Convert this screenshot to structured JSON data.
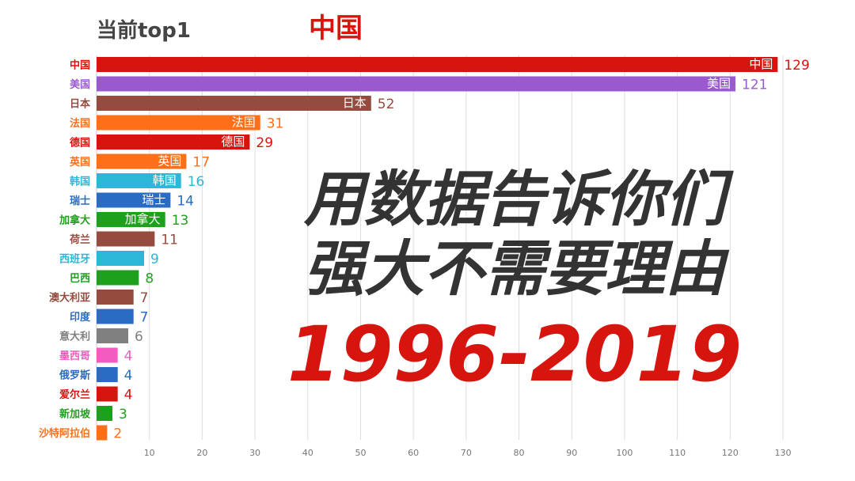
{
  "header": {
    "title": "当前top1",
    "leader": "中国"
  },
  "overlay": {
    "line1": "用数据告诉你们",
    "line2": "强大不需要理由",
    "line3": "1996-2019"
  },
  "chart_data": {
    "type": "bar",
    "orientation": "horizontal",
    "categories": [
      "中国",
      "美国",
      "日本",
      "法国",
      "德国",
      "英国",
      "韩国",
      "瑞士",
      "加拿大",
      "荷兰",
      "西班牙",
      "巴西",
      "澳大利亚",
      "印度",
      "意大利",
      "墨西哥",
      "俄罗斯",
      "爱尔兰",
      "新加坡",
      "沙特阿拉伯"
    ],
    "values": [
      129,
      121,
      52,
      31,
      29,
      17,
      16,
      14,
      13,
      11,
      9,
      8,
      7,
      7,
      6,
      4,
      4,
      4,
      3,
      2
    ],
    "colors": [
      "#d7150f",
      "#9b59d0",
      "#964b3f",
      "#ff6f1a",
      "#d7150f",
      "#ff6f1a",
      "#2bb8d8",
      "#2a6cc4",
      "#1da11d",
      "#964b3f",
      "#2bb8d8",
      "#1da11d",
      "#964b3f",
      "#2a6cc4",
      "#808080",
      "#f25cc0",
      "#2a6cc4",
      "#d7150f",
      "#1da11d",
      "#ff6f1a"
    ],
    "xlim": [
      0,
      130
    ],
    "xticks": [
      10,
      20,
      30,
      40,
      50,
      60,
      70,
      80,
      90,
      100,
      110,
      120,
      130
    ],
    "grid": true
  }
}
